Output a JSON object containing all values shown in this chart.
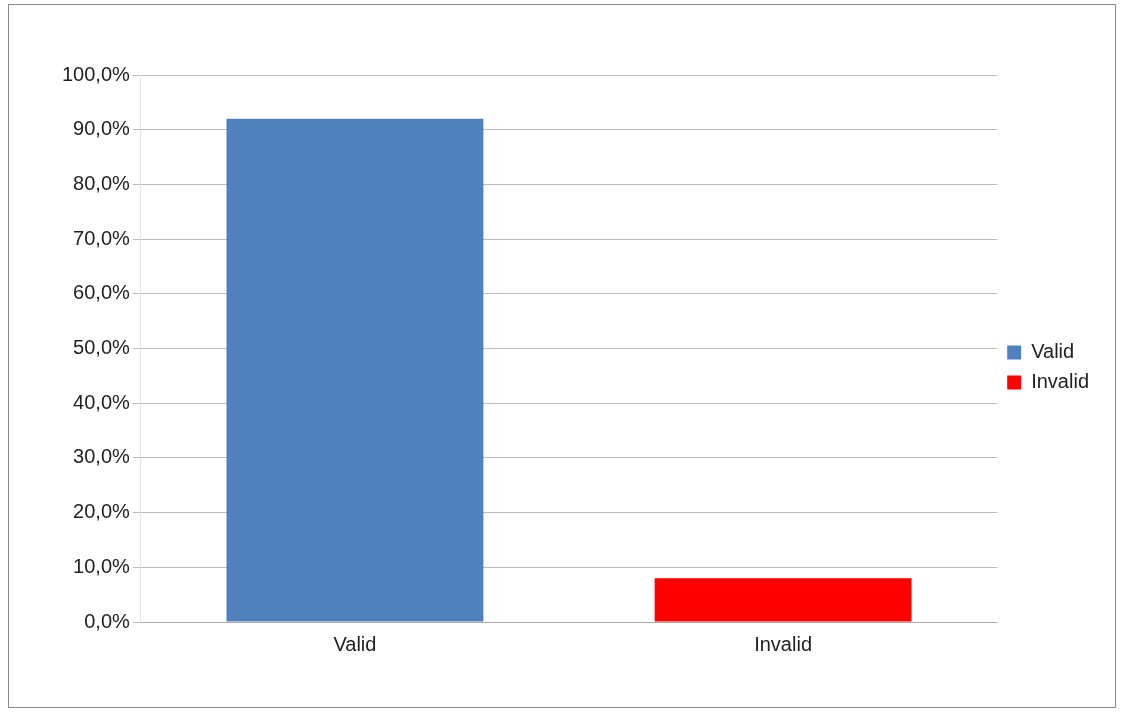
{
  "chart_data": {
    "type": "bar",
    "categories": [
      "Valid",
      "Invalid"
    ],
    "series": [
      {
        "name": "Valid",
        "color": "#4f81bd",
        "values": [
          92,
          null
        ]
      },
      {
        "name": "Invalid",
        "color": "#ff0000",
        "values": [
          null,
          8
        ]
      }
    ],
    "ylim": [
      0,
      100
    ],
    "yticks": [
      {
        "value": 0,
        "label": "0,0%"
      },
      {
        "value": 10,
        "label": "10,0%"
      },
      {
        "value": 20,
        "label": "20,0%"
      },
      {
        "value": 30,
        "label": "30,0%"
      },
      {
        "value": 40,
        "label": "40,0%"
      },
      {
        "value": 50,
        "label": "50,0%"
      },
      {
        "value": 60,
        "label": "60,0%"
      },
      {
        "value": 70,
        "label": "70,0%"
      },
      {
        "value": 80,
        "label": "80,0%"
      },
      {
        "value": 90,
        "label": "90,0%"
      },
      {
        "value": 100,
        "label": "100,0%"
      }
    ],
    "grid": "y",
    "legend": "right"
  }
}
